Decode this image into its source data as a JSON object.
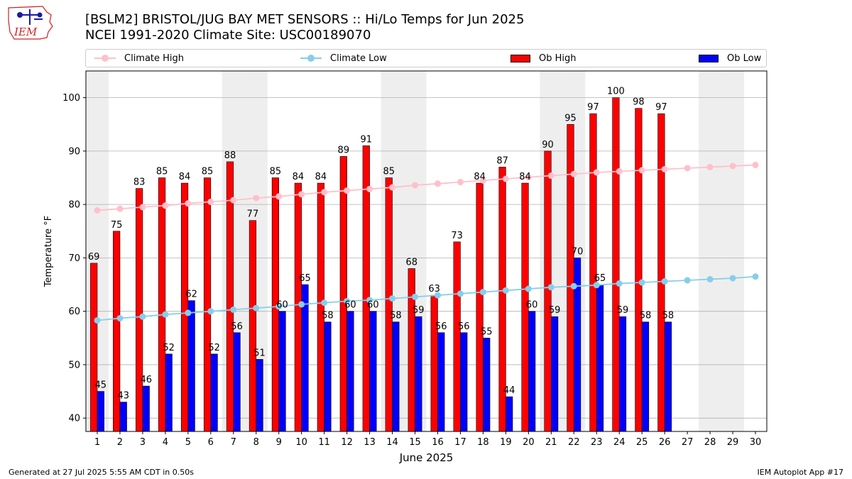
{
  "logo": {
    "text": "IEM"
  },
  "title": {
    "line1": "[BSLM2] BRISTOL/JUG BAY MET SENSORS :: Hi/Lo Temps for Jun 2025",
    "line2": "NCEI 1991-2020 Climate Site: USC00189070"
  },
  "legend": {
    "climate_high": "Climate High",
    "climate_low": "Climate Low",
    "ob_high": "Ob High",
    "ob_low": "Ob Low"
  },
  "footer": {
    "generated": "Generated at 27 Jul 2025 5:55 AM CDT in 0.50s",
    "app": "IEM Autoplot App #17"
  },
  "colors": {
    "ob_high": "#ff0000",
    "ob_low": "#0000ff",
    "climate_high": "#ffc0cb",
    "climate_low": "#87ceeb",
    "weekend_shade": "#eeeeee",
    "grid": "#b0b0b0",
    "logo_red": "#cc2222",
    "logo_blue": "#1a1aa6"
  },
  "chart_data": {
    "type": "bar",
    "xlabel": "June 2025",
    "ylabel": "Temperature °F",
    "ylim": [
      37.5,
      105
    ],
    "yticks": [
      40,
      50,
      60,
      70,
      80,
      90,
      100
    ],
    "grid": "horizontal",
    "legend_position": "top",
    "days": [
      1,
      2,
      3,
      4,
      5,
      6,
      7,
      8,
      9,
      10,
      11,
      12,
      13,
      14,
      15,
      16,
      17,
      18,
      19,
      20,
      21,
      22,
      23,
      24,
      25,
      26,
      27,
      28,
      29,
      30
    ],
    "weekend_days": [
      1,
      7,
      8,
      14,
      15,
      21,
      22,
      28,
      29
    ],
    "series": [
      {
        "name": "Ob High",
        "kind": "bar",
        "values": [
          69,
          75,
          83,
          85,
          84,
          85,
          88,
          77,
          85,
          84,
          84,
          89,
          91,
          85,
          68,
          63,
          73,
          84,
          87,
          84,
          90,
          95,
          97,
          100,
          98,
          97
        ]
      },
      {
        "name": "Ob Low",
        "kind": "bar",
        "values": [
          45,
          43,
          46,
          52,
          62,
          52,
          56,
          51,
          60,
          65,
          58,
          60,
          60,
          58,
          59,
          56,
          56,
          55,
          44,
          60,
          59,
          70,
          65,
          59,
          58,
          58
        ]
      },
      {
        "name": "Climate High",
        "kind": "line",
        "values": [
          78.9,
          79.2,
          79.5,
          79.8,
          80.2,
          80.5,
          80.8,
          81.2,
          81.5,
          81.9,
          82.3,
          82.6,
          82.9,
          83.2,
          83.6,
          83.9,
          84.2,
          84.5,
          84.8,
          85.1,
          85.4,
          85.7,
          86.0,
          86.2,
          86.4,
          86.6,
          86.8,
          87.0,
          87.2,
          87.4
        ]
      },
      {
        "name": "Climate Low",
        "kind": "line",
        "values": [
          58.3,
          58.7,
          59.0,
          59.4,
          59.7,
          60.0,
          60.3,
          60.6,
          60.9,
          61.3,
          61.6,
          61.9,
          62.1,
          62.4,
          62.7,
          63.0,
          63.3,
          63.6,
          63.9,
          64.2,
          64.5,
          64.7,
          64.9,
          65.2,
          65.4,
          65.6,
          65.8,
          66.0,
          66.2,
          66.5
        ]
      }
    ]
  }
}
